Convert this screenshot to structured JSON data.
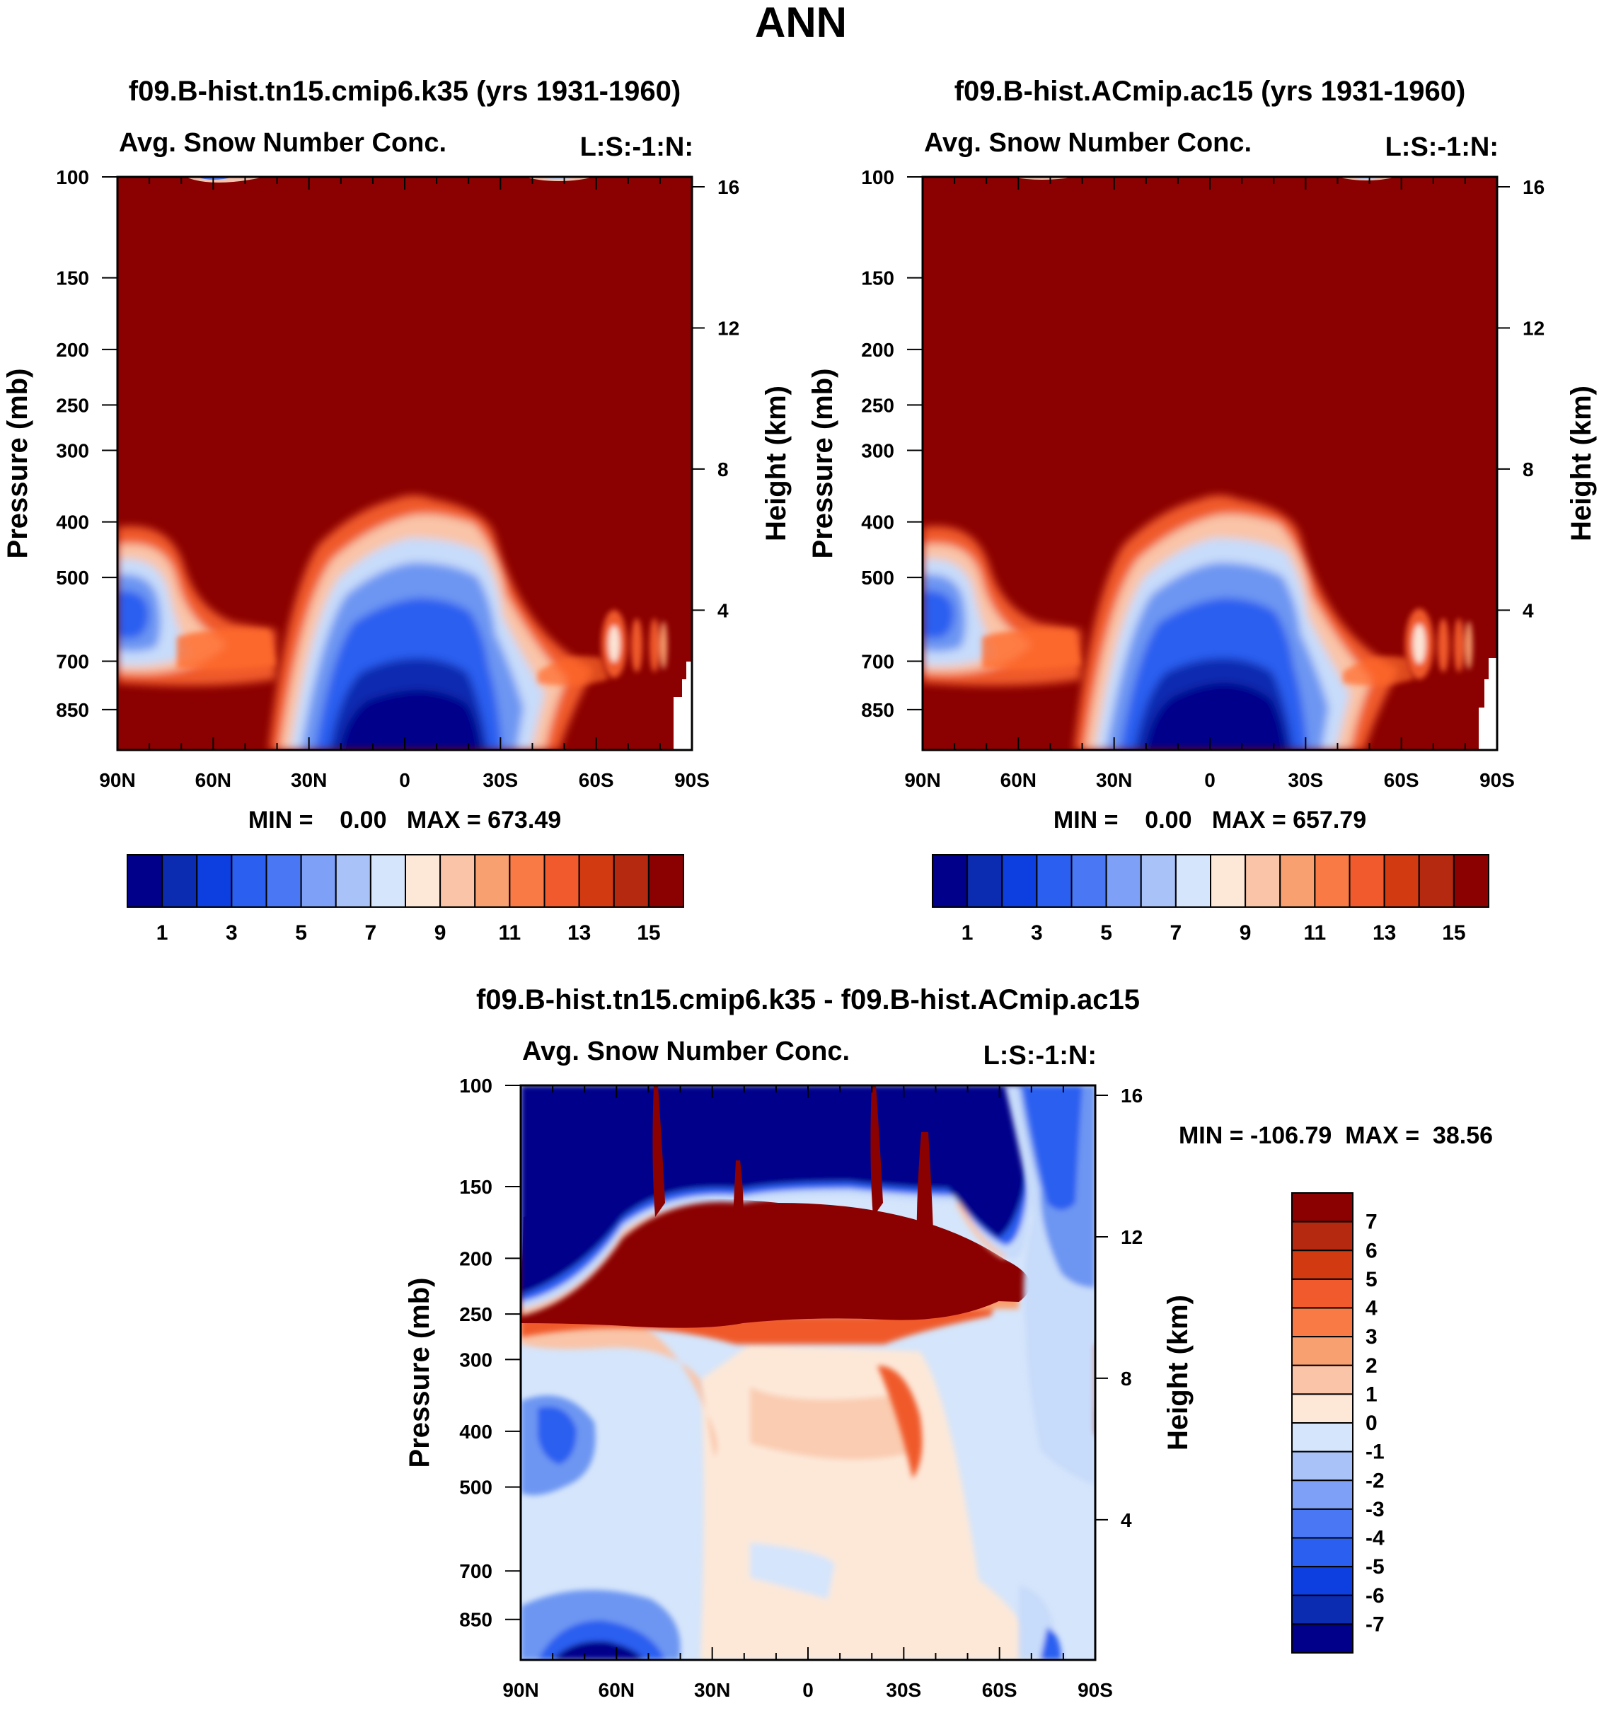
{
  "page": {
    "title": "ANN",
    "accent_dark_red": "#8b0000",
    "accent_dark_blue": "#00008b"
  },
  "chart_data": [
    {
      "id": "panel1",
      "type": "contour",
      "title": "f09.B-hist.tn15.cmip6.k35 (yrs 1931-1960)",
      "subtitle_left": "Avg. Snow Number Conc.",
      "subtitle_right": "L:S:-1:N:",
      "ylabel": "Pressure (mb)",
      "y2label": "Height (km)",
      "x_ticks": [
        "90N",
        "60N",
        "30N",
        "0",
        "30S",
        "60S",
        "90S"
      ],
      "y_ticks": [
        "100",
        "150",
        "200",
        "250",
        "300",
        "400",
        "500",
        "700",
        "850"
      ],
      "y2_ticks": [
        "16",
        "12",
        "8",
        "4"
      ],
      "min_max": "MIN =    0.00   MAX = 673.49",
      "colorbar_labels": [
        "1",
        "3",
        "5",
        "7",
        "9",
        "11",
        "13",
        "15"
      ],
      "colorbar_levels": [
        1,
        2,
        3,
        4,
        5,
        6,
        7,
        8,
        9,
        10,
        11,
        12,
        13,
        14,
        15
      ]
    },
    {
      "id": "panel2",
      "type": "contour",
      "title": "f09.B-hist.ACmip.ac15 (yrs 1931-1960)",
      "subtitle_left": "Avg. Snow Number Conc.",
      "subtitle_right": "L:S:-1:N:",
      "ylabel": "Pressure (mb)",
      "y2label": "Height (km)",
      "x_ticks": [
        "90N",
        "60N",
        "30N",
        "0",
        "30S",
        "60S",
        "90S"
      ],
      "y_ticks": [
        "100",
        "150",
        "200",
        "250",
        "300",
        "400",
        "500",
        "700",
        "850"
      ],
      "y2_ticks": [
        "16",
        "12",
        "8",
        "4"
      ],
      "min_max": "MIN =    0.00   MAX = 657.79",
      "colorbar_labels": [
        "1",
        "3",
        "5",
        "7",
        "9",
        "11",
        "13",
        "15"
      ],
      "colorbar_levels": [
        1,
        2,
        3,
        4,
        5,
        6,
        7,
        8,
        9,
        10,
        11,
        12,
        13,
        14,
        15
      ]
    },
    {
      "id": "panel3",
      "type": "contour",
      "title": "f09.B-hist.tn15.cmip6.k35 - f09.B-hist.ACmip.ac15",
      "subtitle_left": "Avg. Snow Number Conc.",
      "subtitle_right": "L:S:-1:N:",
      "ylabel": "Pressure (mb)",
      "y2label": "Height (km)",
      "x_ticks": [
        "90N",
        "60N",
        "30N",
        "0",
        "30S",
        "60S",
        "90S"
      ],
      "y_ticks": [
        "100",
        "150",
        "200",
        "250",
        "300",
        "400",
        "500",
        "700",
        "850"
      ],
      "y2_ticks": [
        "16",
        "12",
        "8",
        "4"
      ],
      "min_max": "MIN = -106.79  MAX =  38.56",
      "colorbar_labels": [
        "7",
        "6",
        "5",
        "4",
        "3",
        "2",
        "1",
        "0",
        "-1",
        "-2",
        "-3",
        "-4",
        "-5",
        "-6",
        "-7"
      ],
      "colorbar_levels": [
        7,
        6,
        5,
        4,
        3,
        2,
        1,
        0,
        -1,
        -2,
        -3,
        -4,
        -5,
        -6,
        -7
      ]
    }
  ]
}
